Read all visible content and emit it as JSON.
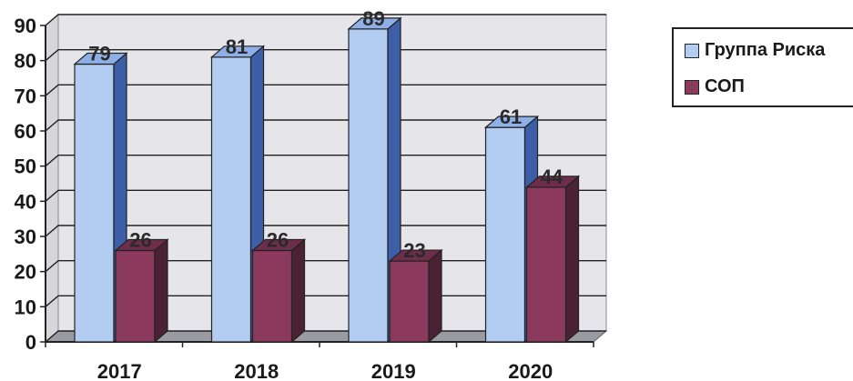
{
  "chart_data": {
    "type": "bar",
    "categories": [
      "2017",
      "2018",
      "2019",
      "2020"
    ],
    "series": [
      {
        "name": "Группа Риска",
        "values": [
          79,
          81,
          89,
          61
        ],
        "color": "#b3ccf2",
        "side_color": "#3d5fa8"
      },
      {
        "name": "СОП",
        "values": [
          26,
          26,
          23,
          44
        ],
        "color": "#8b3a5e",
        "side_color": "#4a2233"
      }
    ],
    "ylim": [
      0,
      90
    ],
    "yticks": [
      "0",
      "10",
      "20",
      "30",
      "40",
      "50",
      "60",
      "70",
      "80",
      "90"
    ],
    "grid": true,
    "legend_position": "right",
    "style": "3d-clustered-column"
  }
}
